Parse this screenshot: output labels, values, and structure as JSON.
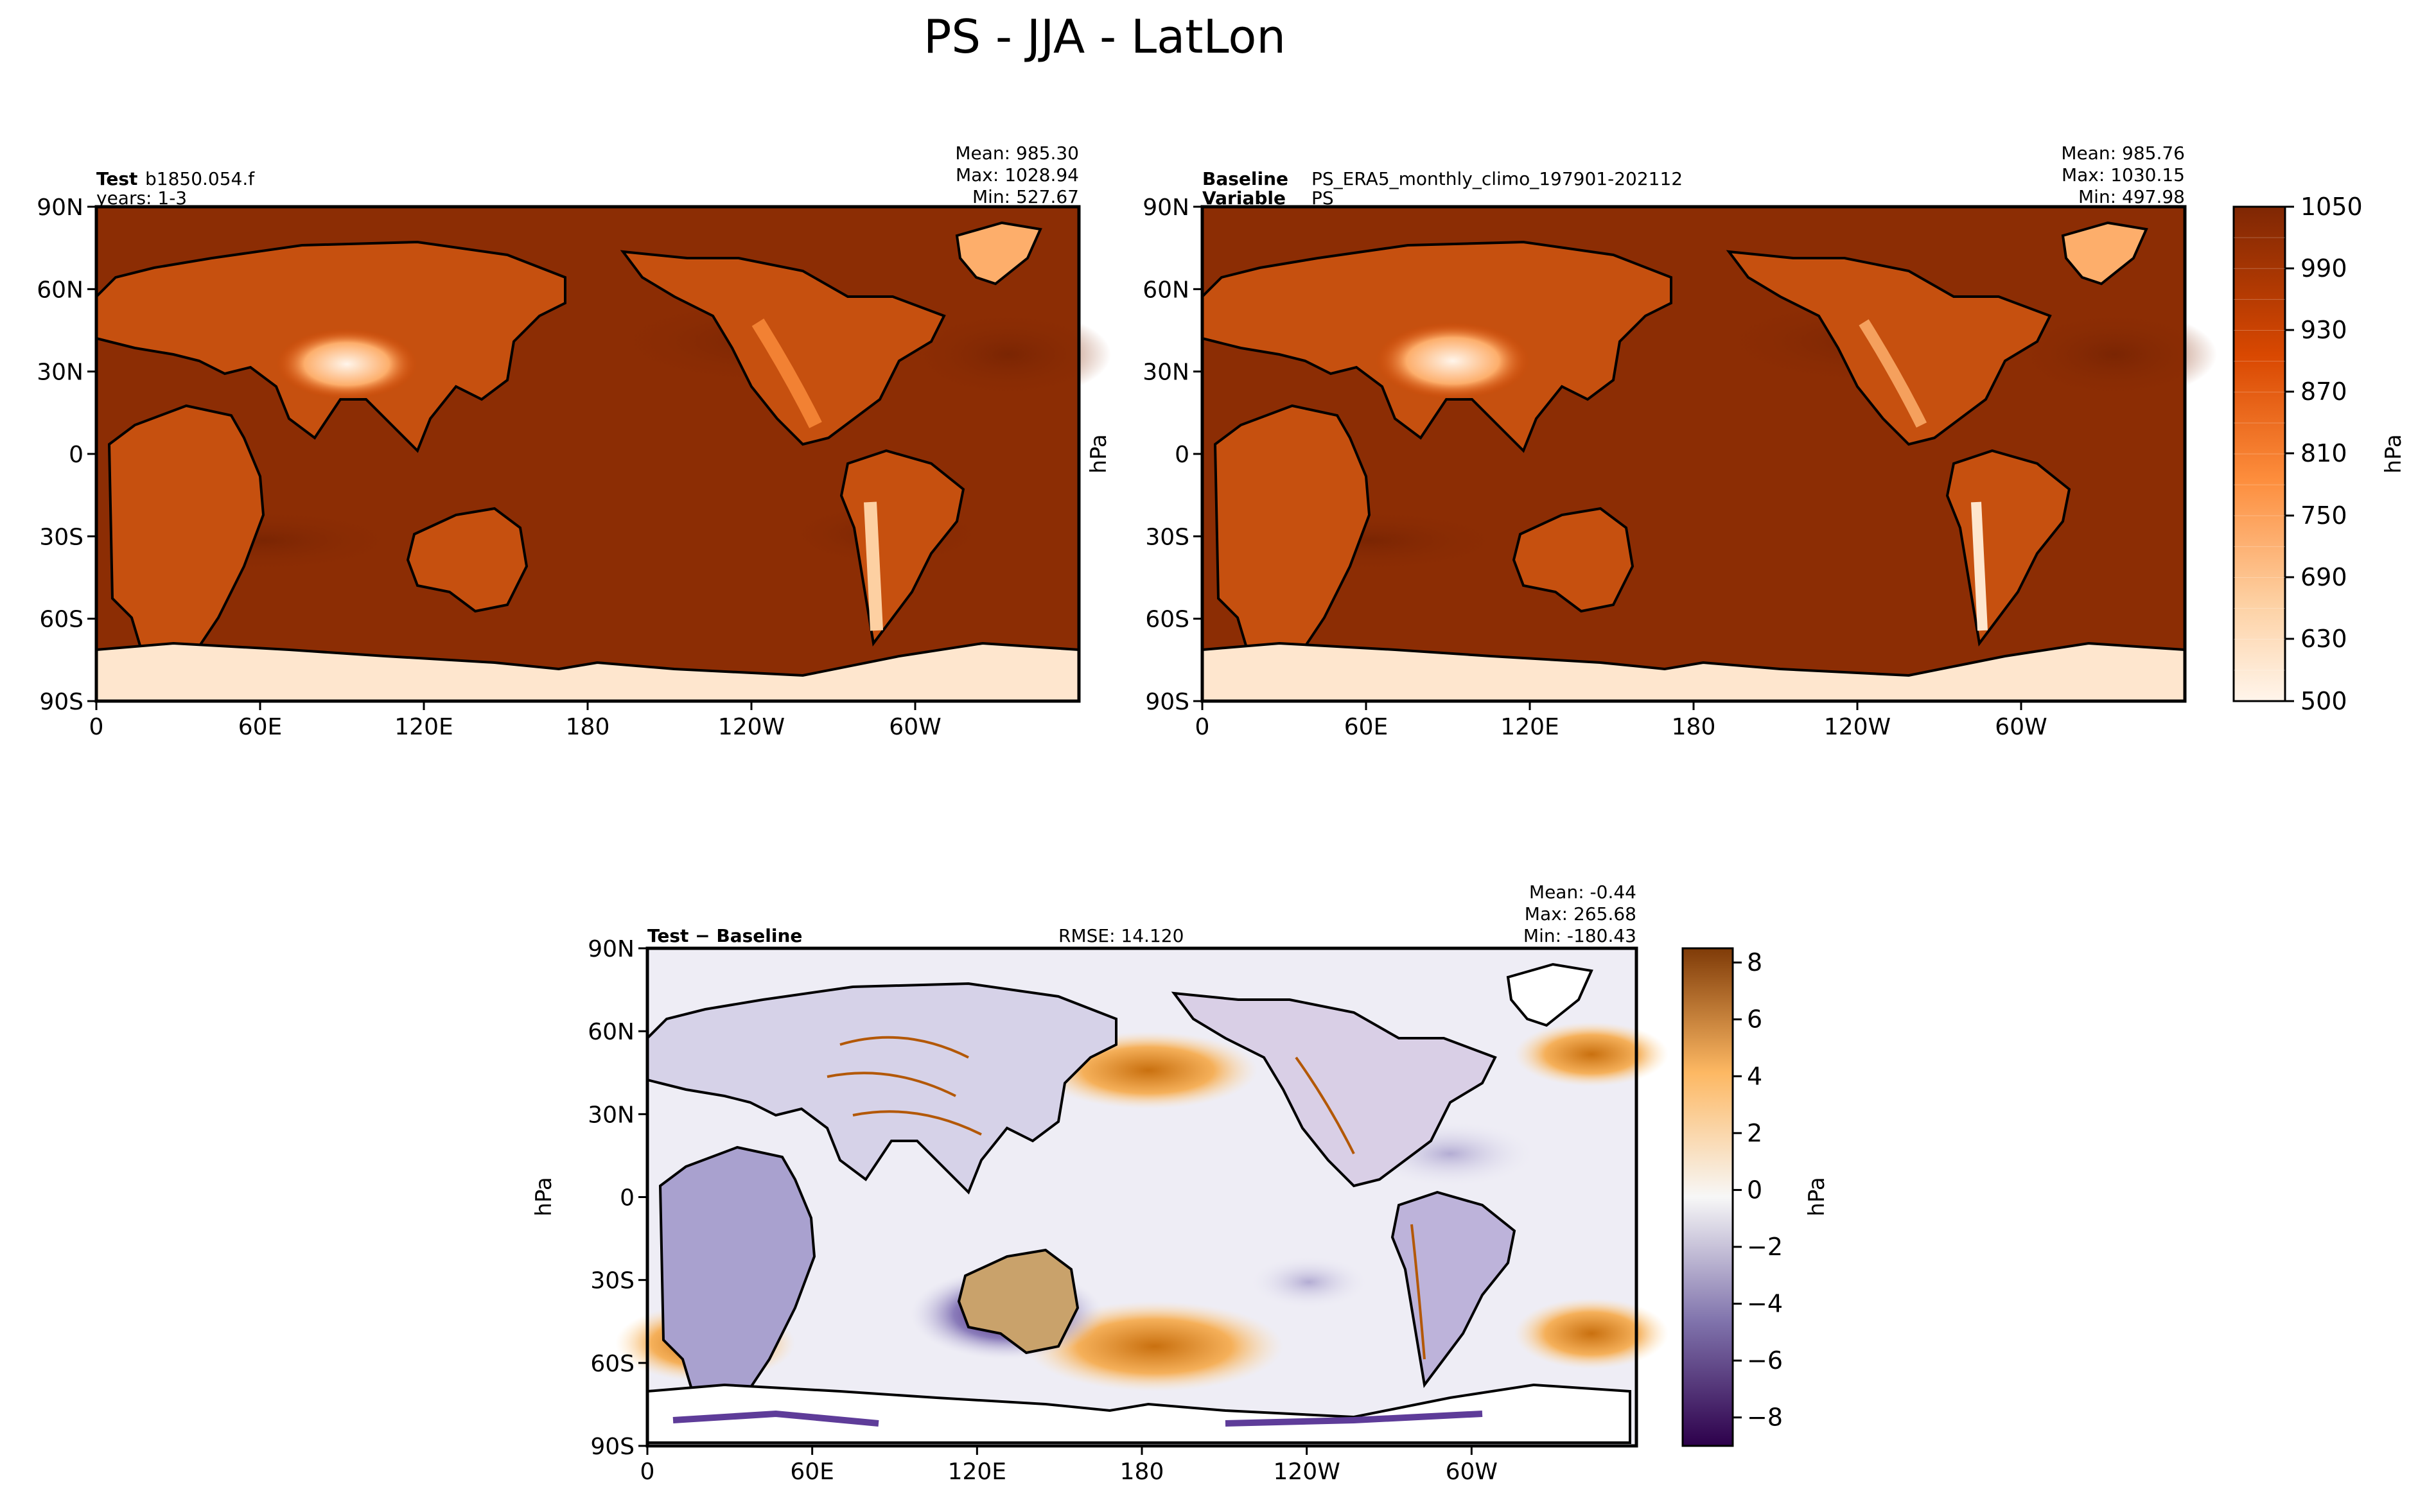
{
  "title": "PS - JJA - LatLon",
  "colors": {
    "land_high_light": "#fde7d0",
    "ocean_dark": "#7f2704",
    "ocean_mid": "#a63603",
    "diff_positive": "#b35806",
    "diff_negative": "#2d004b",
    "diff_neutral": "#f7f7f7",
    "coastline": "#000000"
  },
  "chart_data": [
    {
      "type": "heatmap",
      "id": "test",
      "header_bold": "Test",
      "header_value": "b1850.054.f",
      "header_line2": "years: 1-3",
      "stats": [
        "Mean: 985.30",
        "Max: 1028.94",
        "Min: 527.67"
      ],
      "ylabel": "",
      "xlim": [
        0,
        360
      ],
      "ylim": [
        -90,
        90
      ],
      "xticks": [
        "0",
        "60E",
        "120E",
        "180",
        "120W",
        "60W"
      ],
      "yticks": [
        "90N",
        "60N",
        "30N",
        "0",
        "30S",
        "60S",
        "90S"
      ],
      "mean": 985.3,
      "max": 1028.94,
      "min": 527.67
    },
    {
      "type": "heatmap",
      "id": "baseline",
      "header_bold": "Baseline",
      "header_value": "PS_ERA5_monthly_climo_197901-202112",
      "header_bold2": "Variable",
      "header_value2": "PS",
      "stats": [
        "Mean: 985.76",
        "Max: 1030.15",
        "Min: 497.98"
      ],
      "ylabel": "hPa",
      "xlim": [
        0,
        360
      ],
      "ylim": [
        -90,
        90
      ],
      "xticks": [
        "0",
        "60E",
        "120E",
        "180",
        "120W",
        "60W"
      ],
      "yticks": [
        "90N",
        "60N",
        "30N",
        "0",
        "30S",
        "60S",
        "90S"
      ],
      "mean": 985.76,
      "max": 1030.15,
      "min": 497.98
    },
    {
      "type": "heatmap",
      "id": "difference",
      "header_bold": "Test − Baseline",
      "rmse": "RMSE: 14.120",
      "stats": [
        "Mean: -0.44",
        "Max: 265.68",
        "Min: -180.43"
      ],
      "ylabel": "hPa",
      "xlim": [
        0,
        360
      ],
      "ylim": [
        -90,
        90
      ],
      "xticks": [
        "0",
        "60E",
        "120E",
        "180",
        "120W",
        "60W"
      ],
      "yticks": [
        "90N",
        "60N",
        "30N",
        "0",
        "30S",
        "60S",
        "90S"
      ],
      "mean": -0.44,
      "max": 265.68,
      "min": -180.43
    }
  ],
  "colorbars": {
    "top": {
      "label": "hPa",
      "range": [
        500,
        1050
      ],
      "ticks": [
        "1050",
        "990",
        "930",
        "870",
        "810",
        "750",
        "690",
        "630",
        "500"
      ]
    },
    "diff": {
      "label": "hPa",
      "range": [
        -9,
        8.5
      ],
      "ticks": [
        "8",
        "6",
        "4",
        "2",
        "0",
        "−2",
        "−4",
        "−6",
        "−8"
      ]
    }
  }
}
